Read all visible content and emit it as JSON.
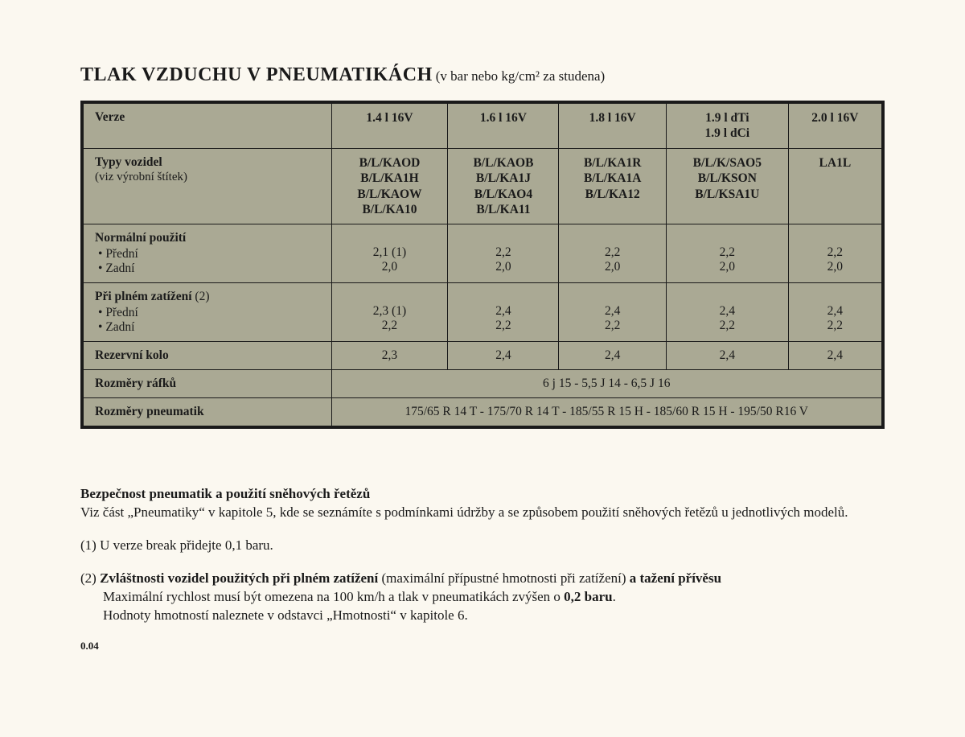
{
  "title": {
    "main": "TLAK VZDUCHU V PNEUMATIKÁCH",
    "sub": "(v bar nebo kg/cm² za studena)"
  },
  "table": {
    "header_label": "Verze",
    "columns": [
      "1.4 l 16V",
      "1.6 l 16V",
      "1.8 l 16V",
      "1.9 l dTi\n1.9 l dCi",
      "2.0 l 16V"
    ],
    "vehicle_types": {
      "label": "Typy vozidel",
      "sublabel": "(viz výrobní štítek)",
      "cells": [
        "B/L/KAOD\nB/L/KA1H\nB/L/KAOW\nB/L/KA10",
        "B/L/KAOB\nB/L/KA1J\nB/L/KAO4\nB/L/KA11",
        "B/L/KA1R\nB/L/KA1A\nB/L/KA12",
        "B/L/K/SAO5\nB/L/KSON\nB/L/KSA1U",
        "LA1L"
      ]
    },
    "normal": {
      "label": "Normální použití",
      "sub1": "Přední",
      "sub2": "Zadní",
      "front": [
        "2,1 (1)",
        "2,2",
        "2,2",
        "2,2",
        "2,2"
      ],
      "rear": [
        "2,0",
        "2,0",
        "2,0",
        "2,0",
        "2,0"
      ]
    },
    "full_load": {
      "label": "Při plném zatížení",
      "label_note": "(2)",
      "sub1": "Přední",
      "sub2": "Zadní",
      "front": [
        "2,3 (1)",
        "2,4",
        "2,4",
        "2,4",
        "2,4"
      ],
      "rear": [
        "2,2",
        "2,2",
        "2,2",
        "2,2",
        "2,2"
      ]
    },
    "spare": {
      "label": "Rezervní kolo",
      "cells": [
        "2,3",
        "2,4",
        "2,4",
        "2,4",
        "2,4"
      ]
    },
    "rims": {
      "label": "Rozměry ráfků",
      "value": "6 j 15 - 5,5 J 14 - 6,5 J 16"
    },
    "tyres": {
      "label": "Rozměry pneumatik",
      "value": "175/65 R 14 T - 175/70 R 14 T - 185/55 R 15 H - 185/60 R 15 H - 195/50 R16 V"
    }
  },
  "notes": {
    "safety_title": "Bezpečnost pneumatik a použití sněhových řetězů",
    "safety_body": "Viz část „Pneumatiky“ v kapitole 5, kde se seznámíte s podmínkami údržby a se způsobem použití sněhových řetězů u jednotlivých modelů.",
    "note1": "(1) U verze break přidejte 0,1 baru.",
    "note2_prefix": "(2) ",
    "note2_bold1": "Zvláštnosti vozidel použitých při plném zatížení ",
    "note2_mid": "(maximální přípustné hmotnosti při zatížení) ",
    "note2_bold2": "a tažení přívěsu",
    "note2_line2a": "Maximální rychlost musí být omezena na 100 km/h a tlak v pneumatikách zvýšen o ",
    "note2_line2b_bold": "0,2 baru",
    "note2_line2c": ".",
    "note2_line3": "Hodnoty hmotností naleznete v odstavci „Hmotnosti“ v kapitole 6."
  },
  "page_number": "0.04",
  "style": {
    "background": "#fbf8f0",
    "table_bg": "#aaa994",
    "border_color": "#1a1a1a",
    "font_family": "Georgia, Times New Roman, serif",
    "title_fontsize": 24,
    "body_fontsize": 17,
    "table_fontsize": 15.5
  }
}
